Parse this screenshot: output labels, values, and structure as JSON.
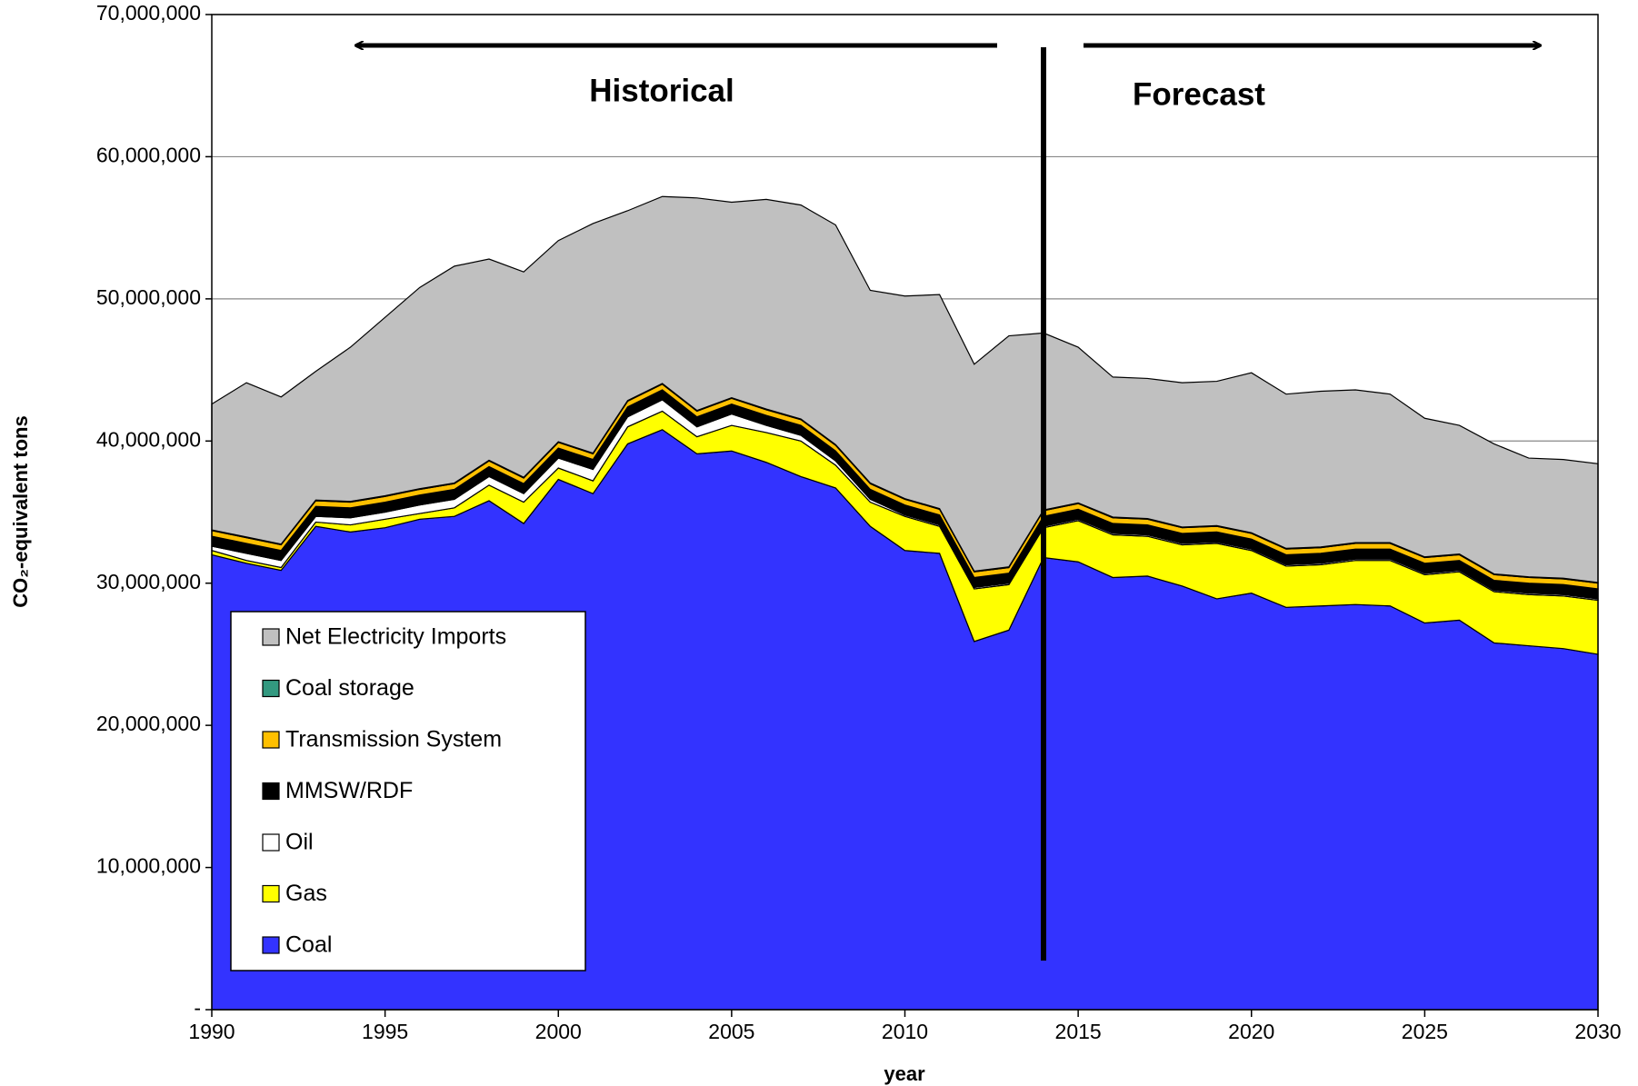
{
  "chart_data": {
    "type": "stacked-area",
    "x": [
      1990,
      1991,
      1992,
      1993,
      1994,
      1995,
      1996,
      1997,
      1998,
      1999,
      2000,
      2001,
      2002,
      2003,
      2004,
      2005,
      2006,
      2007,
      2008,
      2009,
      2010,
      2011,
      2012,
      2013,
      2014,
      2015,
      2016,
      2017,
      2018,
      2019,
      2020,
      2021,
      2022,
      2023,
      2024,
      2025,
      2026,
      2027,
      2028,
      2029,
      2030
    ],
    "series": [
      {
        "name": "Coal",
        "color": "#3333ff",
        "values": [
          32000000,
          31400000,
          30900000,
          34000000,
          33600000,
          33900000,
          34500000,
          34700000,
          35800000,
          34200000,
          37300000,
          36300000,
          39800000,
          40800000,
          39100000,
          39300000,
          38500000,
          37500000,
          36700000,
          34000000,
          32300000,
          32100000,
          25900000,
          26700000,
          31800000,
          31500000,
          30400000,
          30500000,
          29800000,
          28900000,
          29300000,
          28300000,
          28400000,
          28500000,
          28400000,
          27200000,
          27400000,
          25800000,
          25600000,
          25400000,
          25000000
        ]
      },
      {
        "name": "Gas",
        "color": "#ffff00",
        "values": [
          300000,
          200000,
          200000,
          300000,
          500000,
          600000,
          400000,
          600000,
          1100000,
          1500000,
          800000,
          900000,
          1200000,
          1300000,
          1200000,
          1800000,
          2100000,
          2500000,
          1600000,
          1700000,
          2400000,
          1900000,
          3700000,
          3200000,
          2100000,
          2900000,
          3000000,
          2800000,
          2900000,
          3900000,
          3000000,
          2900000,
          2900000,
          3100000,
          3200000,
          3400000,
          3400000,
          3600000,
          3600000,
          3700000,
          3800000
        ]
      },
      {
        "name": "Oil",
        "color": "#ffffff",
        "values": [
          300000,
          500000,
          500000,
          400000,
          500000,
          500000,
          600000,
          600000,
          600000,
          600000,
          700000,
          800000,
          700000,
          800000,
          700000,
          800000,
          500000,
          400000,
          300000,
          200000,
          100000,
          100000,
          100000,
          100000,
          100000,
          100000,
          100000,
          100000,
          100000,
          100000,
          100000,
          100000,
          100000,
          100000,
          100000,
          100000,
          100000,
          100000,
          100000,
          100000,
          100000
        ]
      },
      {
        "name": "MMSW/RDF",
        "color": "#000000",
        "values": [
          700000,
          700000,
          700000,
          700000,
          700000,
          700000,
          700000,
          700000,
          700000,
          700000,
          700000,
          700000,
          700000,
          700000,
          700000,
          700000,
          700000,
          700000,
          700000,
          700000,
          700000,
          700000,
          700000,
          700000,
          700000,
          700000,
          700000,
          700000,
          700000,
          700000,
          700000,
          700000,
          700000,
          700000,
          700000,
          700000,
          700000,
          700000,
          700000,
          700000,
          700000
        ]
      },
      {
        "name": "Transmission System",
        "color": "#ffc000",
        "values": [
          400000,
          400000,
          400000,
          400000,
          400000,
          400000,
          400000,
          400000,
          400000,
          400000,
          400000,
          400000,
          400000,
          400000,
          400000,
          400000,
          400000,
          400000,
          400000,
          400000,
          400000,
          400000,
          400000,
          400000,
          400000,
          400000,
          400000,
          400000,
          400000,
          400000,
          400000,
          400000,
          400000,
          400000,
          400000,
          400000,
          400000,
          400000,
          400000,
          400000,
          400000
        ]
      },
      {
        "name": "Coal storage",
        "color": "#339980",
        "values": [
          50000,
          50000,
          50000,
          50000,
          50000,
          50000,
          50000,
          50000,
          50000,
          50000,
          50000,
          50000,
          50000,
          50000,
          50000,
          50000,
          50000,
          50000,
          50000,
          50000,
          50000,
          50000,
          50000,
          50000,
          50000,
          50000,
          50000,
          50000,
          50000,
          50000,
          50000,
          50000,
          50000,
          50000,
          50000,
          50000,
          50000,
          50000,
          50000,
          50000,
          50000
        ]
      },
      {
        "name": "Net Electricity Imports",
        "color": "#c0c0c0",
        "values": [
          8850000,
          10850000,
          10350000,
          9050000,
          10850000,
          12550000,
          14150000,
          15250000,
          14150000,
          14450000,
          14150000,
          16150000,
          13350000,
          13150000,
          14950000,
          13750000,
          14750000,
          15050000,
          15450000,
          13550000,
          14250000,
          15050000,
          14550000,
          16250000,
          12450000,
          10950000,
          9850000,
          9850000,
          10150000,
          10150000,
          11250000,
          10850000,
          10950000,
          10750000,
          10450000,
          9750000,
          9050000,
          9150000,
          8350000,
          8350000,
          8350000
        ]
      }
    ],
    "xlim": [
      1990,
      2030
    ],
    "xticks": [
      1990,
      1995,
      2000,
      2005,
      2010,
      2015,
      2020,
      2025,
      2030
    ],
    "ylim": [
      0,
      70000000
    ],
    "yticks": [
      {
        "value": 0,
        "label": "-"
      },
      {
        "value": 10000000,
        "label": "10,000,000"
      },
      {
        "value": 20000000,
        "label": "20,000,000"
      },
      {
        "value": 30000000,
        "label": "30,000,000"
      },
      {
        "value": 40000000,
        "label": "40,000,000"
      },
      {
        "value": 50000000,
        "label": "50,000,000"
      },
      {
        "value": 60000000,
        "label": "60,000,000"
      },
      {
        "value": 70000000,
        "label": "70,000,000"
      }
    ],
    "grid": true,
    "x_label": "year",
    "y_label": "CO₂-equivalent tons",
    "annotations": [
      "Historical",
      "Forecast"
    ],
    "divider": 2014,
    "legend": "lower left"
  }
}
